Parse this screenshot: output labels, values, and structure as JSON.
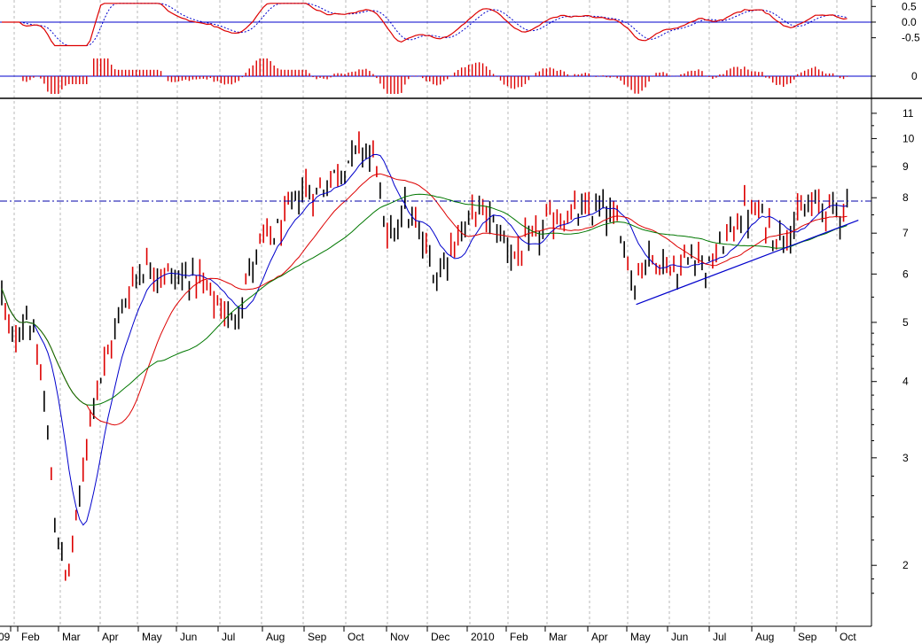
{
  "chart_data": {
    "type": "candlestick",
    "title": "",
    "scale": "log",
    "x_labels": [
      "09",
      "Feb",
      "Mar",
      "Apr",
      "May",
      "Jun",
      "Jul",
      "Aug",
      "Sep",
      "Oct",
      "Nov",
      "Dec",
      "2010",
      "Feb",
      "Mar",
      "Apr",
      "May",
      "Jun",
      "Jul",
      "Aug",
      "Sep",
      "Oct"
    ],
    "main_ticks": [
      "11",
      "10",
      "9",
      "8",
      "7",
      "6",
      "5",
      "4",
      "3",
      "2"
    ],
    "main_tick_values": [
      11,
      10,
      9,
      8,
      7,
      6,
      5,
      4,
      3,
      2
    ],
    "main_ylim": [
      1.6,
      11.6
    ],
    "osc_ticks": [
      "0.5",
      "0.0",
      "-0.5"
    ],
    "osc_tick_values": [
      0.5,
      0.0,
      -0.5
    ],
    "osc_ylim": [
      -0.85,
      0.65
    ],
    "hist_ticks": [
      "0"
    ],
    "resistance_level": 7.9,
    "trendline": {
      "from": [
        0.73,
        5.35
      ],
      "to": [
        0.985,
        7.35
      ]
    },
    "price_anchors": [
      [
        0,
        5.6
      ],
      [
        0.01,
        4.6
      ],
      [
        0.03,
        5.2
      ],
      [
        0.05,
        3.6
      ],
      [
        0.06,
        2.4
      ],
      [
        0.075,
        1.85
      ],
      [
        0.09,
        2.6
      ],
      [
        0.105,
        3.8
      ],
      [
        0.12,
        4.3
      ],
      [
        0.14,
        5.4
      ],
      [
        0.16,
        6.2
      ],
      [
        0.18,
        6.1
      ],
      [
        0.2,
        5.9
      ],
      [
        0.22,
        6.0
      ],
      [
        0.24,
        5.5
      ],
      [
        0.265,
        5.0
      ],
      [
        0.28,
        5.8
      ],
      [
        0.3,
        6.8
      ],
      [
        0.32,
        7.1
      ],
      [
        0.345,
        8.3
      ],
      [
        0.36,
        8.1
      ],
      [
        0.38,
        8.7
      ],
      [
        0.4,
        9.3
      ],
      [
        0.415,
        9.7
      ],
      [
        0.43,
        9.2
      ],
      [
        0.44,
        6.6
      ],
      [
        0.46,
        7.8
      ],
      [
        0.48,
        6.9
      ],
      [
        0.5,
        5.9
      ],
      [
        0.51,
        6.5
      ],
      [
        0.53,
        7.1
      ],
      [
        0.545,
        7.7
      ],
      [
        0.56,
        7.4
      ],
      [
        0.575,
        6.9
      ],
      [
        0.59,
        6.4
      ],
      [
        0.61,
        6.8
      ],
      [
        0.63,
        7.4
      ],
      [
        0.66,
        7.5
      ],
      [
        0.69,
        7.7
      ],
      [
        0.71,
        7.1
      ],
      [
        0.725,
        5.8
      ],
      [
        0.74,
        6.4
      ],
      [
        0.76,
        6.3
      ],
      [
        0.775,
        6.0
      ],
      [
        0.795,
        6.6
      ],
      [
        0.81,
        6.1
      ],
      [
        0.83,
        6.8
      ],
      [
        0.85,
        7.6
      ],
      [
        0.87,
        7.5
      ],
      [
        0.89,
        6.9
      ],
      [
        0.91,
        7.3
      ],
      [
        0.93,
        7.8
      ],
      [
        0.95,
        7.7
      ],
      [
        0.96,
        7.6
      ],
      [
        0.97,
        7.9
      ]
    ],
    "series": [
      {
        "name": "price",
        "color": "#000000"
      },
      {
        "name": "ma_short",
        "color": "#0000cc"
      },
      {
        "name": "ma_medium",
        "color": "#dd0000"
      },
      {
        "name": "ma_long",
        "color": "#007700"
      }
    ],
    "oscillator_lines": [
      {
        "name": "oscillator",
        "color": "#dd0000"
      },
      {
        "name": "signal",
        "color": "#0000cc"
      }
    ]
  }
}
